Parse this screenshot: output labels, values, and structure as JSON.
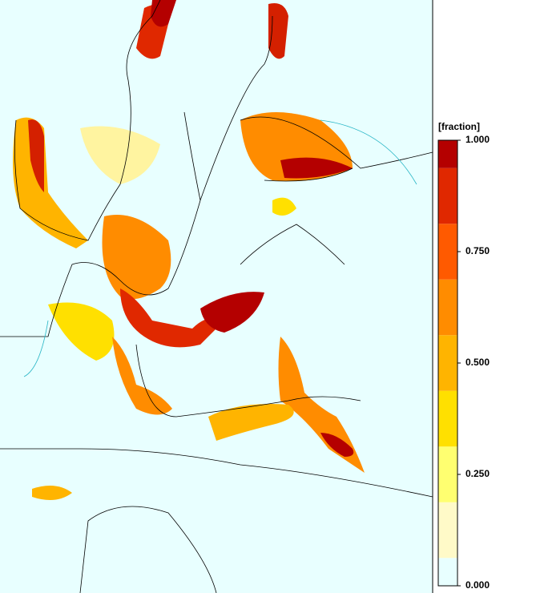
{
  "colorbar": {
    "label": "[fraction]",
    "lim": [
      0,
      1
    ],
    "bounds": [
      0,
      0.0625,
      0.1875,
      0.3125,
      0.4375,
      0.5625,
      0.6875,
      0.8125,
      0.9375,
      1
    ],
    "colors": [
      "#e8ffff",
      "#fffac8",
      "#ffff70",
      "#ffe000",
      "#ffb400",
      "#ff8c00",
      "#ff5a00",
      "#e02800",
      "#b40000"
    ],
    "ticks": [
      {
        "value": 0,
        "label": "0.000"
      },
      {
        "value": 0.25,
        "label": "0.250"
      },
      {
        "value": 0.5,
        "label": "0.500"
      },
      {
        "value": 0.75,
        "label": "0.750"
      },
      {
        "value": 1,
        "label": "1.000"
      }
    ]
  }
}
